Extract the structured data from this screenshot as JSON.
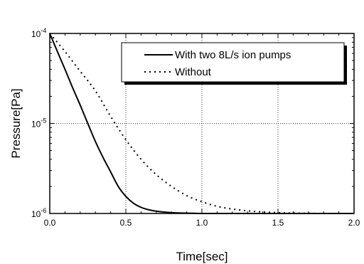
{
  "chart_data": {
    "type": "line",
    "title": "",
    "xlabel": "Time[sec]",
    "ylabel": "Pressure[Pa]",
    "xlim": [
      0,
      2.0
    ],
    "ylim": [
      1e-06,
      0.0001
    ],
    "yscale": "log",
    "grid": true,
    "legend_position": "top-right",
    "x_ticks": [
      0.0,
      0.5,
      1.0,
      1.5,
      2.0
    ],
    "x_tick_labels": [
      "0.0",
      "0.5",
      "1.0",
      "1.5",
      "2.0"
    ],
    "y_ticks": [
      {
        "value": 0.0001,
        "base": "10",
        "exp": "-4"
      },
      {
        "value": 1e-05,
        "base": "10",
        "exp": "-5"
      },
      {
        "value": 1e-06,
        "base": "10",
        "exp": "-6"
      }
    ],
    "series": [
      {
        "name": "With two 8L/s ion pumps",
        "style": "solid",
        "color": "#000000",
        "x": [
          0.0,
          0.05,
          0.1,
          0.15,
          0.2,
          0.25,
          0.3,
          0.35,
          0.4,
          0.45,
          0.5,
          0.55,
          0.6,
          0.65,
          0.7,
          0.8,
          0.9,
          1.0,
          1.2,
          1.5,
          2.0
        ],
        "y": [
          0.0001,
          6.3e-05,
          4e-05,
          2.5e-05,
          1.6e-05,
          1e-05,
          6.3e-06,
          4.2e-06,
          2.9e-06,
          2e-06,
          1.55e-06,
          1.3e-06,
          1.17e-06,
          1.1e-06,
          1.06e-06,
          1.02e-06,
          1.01e-06,
          1e-06,
          1e-06,
          1e-06,
          1e-06
        ]
      },
      {
        "name": "Without",
        "style": "dotted",
        "color": "#000000",
        "x": [
          0.0,
          0.1,
          0.2,
          0.3,
          0.4,
          0.5,
          0.6,
          0.7,
          0.8,
          0.9,
          1.0,
          1.1,
          1.2,
          1.3,
          1.4,
          1.5,
          1.6,
          1.8,
          2.0
        ],
        "y": [
          0.0001,
          6.3e-05,
          3.8e-05,
          2.3e-05,
          1.2e-05,
          6.6e-06,
          4e-06,
          2.7e-06,
          2e-06,
          1.58e-06,
          1.35e-06,
          1.2e-06,
          1.12e-06,
          1.07e-06,
          1.04e-06,
          1.02e-06,
          1.01e-06,
          1e-06,
          1e-06
        ]
      }
    ]
  }
}
